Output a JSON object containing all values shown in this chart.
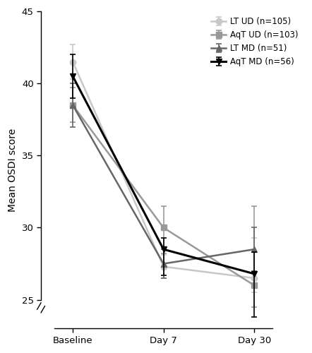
{
  "x_positions": [
    0,
    1,
    2
  ],
  "x_labels": [
    "Baseline",
    "Day 7",
    "Day 30"
  ],
  "series": [
    {
      "label": "LT UD (n=105)",
      "color": "#c8c8c8",
      "marker": "o",
      "markersize": 6,
      "linewidth": 1.8,
      "y": [
        41.5,
        27.3,
        26.5
      ],
      "yerr_lo": [
        1.2,
        0.8,
        1.0
      ],
      "yerr_hi": [
        1.2,
        0.8,
        2.8
      ],
      "zorder": 2
    },
    {
      "label": "AqT UD (n=103)",
      "color": "#999999",
      "marker": "s",
      "markersize": 6,
      "linewidth": 1.8,
      "y": [
        38.5,
        30.0,
        26.0
      ],
      "yerr_lo": [
        1.2,
        1.8,
        1.5
      ],
      "yerr_hi": [
        1.2,
        1.5,
        5.5
      ],
      "zorder": 3
    },
    {
      "label": "LT MD (n=51)",
      "color": "#666666",
      "marker": "^",
      "markersize": 6,
      "linewidth": 1.8,
      "y": [
        38.5,
        27.5,
        28.5
      ],
      "yerr_lo": [
        1.5,
        1.0,
        1.5
      ],
      "yerr_hi": [
        1.5,
        1.0,
        1.5
      ],
      "zorder": 4
    },
    {
      "label": "AqT MD (n=56)",
      "color": "#000000",
      "marker": "v",
      "markersize": 6,
      "linewidth": 2.2,
      "y": [
        40.5,
        28.5,
        26.8
      ],
      "yerr_lo": [
        1.5,
        1.8,
        3.0
      ],
      "yerr_hi": [
        1.5,
        0.8,
        1.5
      ],
      "zorder": 5
    }
  ],
  "ylim": [
    23,
    45
  ],
  "yticks": [
    25,
    30,
    35,
    40,
    45
  ],
  "ylabel": "Mean OSDI score",
  "background_color": "#ffffff",
  "legend_fontsize": 8.5,
  "axis_fontsize": 10,
  "tick_fontsize": 9.5
}
